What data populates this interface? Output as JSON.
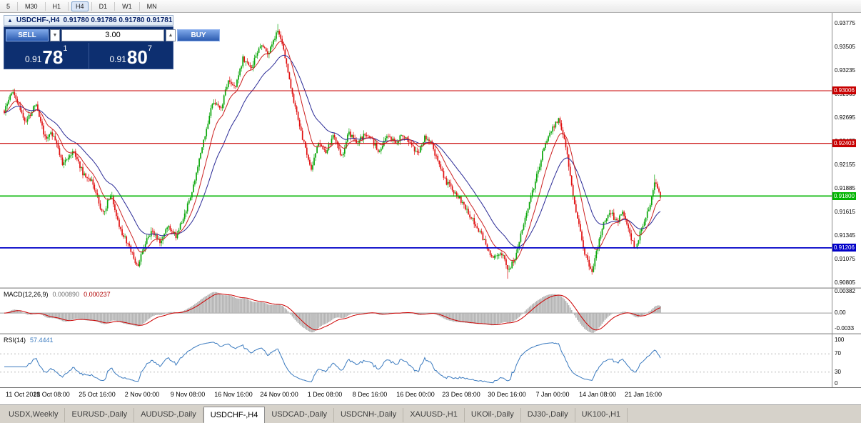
{
  "toolbar": {
    "timeframes": [
      "5",
      "M30",
      "H1",
      "H4",
      "D1",
      "W1",
      "MN"
    ],
    "active": "H4"
  },
  "chart_header": {
    "collapse_icon": "▲",
    "symbol_title": "USDCHF-,H4",
    "ohlc": "0.91780 0.91786 0.91780 0.91781"
  },
  "trade_panel": {
    "sell_label": "SELL",
    "buy_label": "BUY",
    "volume": "3.00",
    "sell_price_prefix": "0.91",
    "sell_price_big": "78",
    "sell_price_sup": "1",
    "buy_price_prefix": "0.91",
    "buy_price_big": "80",
    "buy_price_sup": "7",
    "panel_bg": "#0d2f70",
    "button_color": "#3c77d6"
  },
  "chart_data": {
    "type": "candlestick",
    "symbol": "USDCHF-",
    "timeframe": "H4",
    "title": "USDCHF-,H4 0.91780 0.91786 0.91780 0.91781",
    "ohlc_current": {
      "open": 0.9178,
      "high": 0.91786,
      "low": 0.9178,
      "close": 0.91781
    },
    "bars": 452,
    "y_axis": {
      "price_top": 0.93898,
      "price_bottom": 0.90755,
      "tick_labels": [
        "0.93775",
        "0.93505",
        "0.93235",
        "0.92965",
        "0.92695",
        "0.92425",
        "0.92155",
        "0.91885",
        "0.91615",
        "0.91345",
        "0.91075",
        "0.90805"
      ]
    },
    "x_axis": {
      "labels": [
        "11 Oct 2021",
        "18 Oct 08:00",
        "25 Oct 16:00",
        "2 Nov 00:00",
        "9 Nov 08:00",
        "16 Nov 16:00",
        "24 Nov 00:00",
        "1 Dec 08:00",
        "8 Dec 16:00",
        "16 Dec 00:00",
        "23 Dec 08:00",
        "30 Dec 16:00",
        "7 Jan 00:00",
        "14 Jan 08:00",
        "21 Jan 16:00"
      ]
    },
    "horizontal_lines": [
      {
        "price": 0.93006,
        "label": "0.93006",
        "color": "#c80000",
        "width": 1.1,
        "type": "resistance"
      },
      {
        "price": 0.92403,
        "label": "0.92403",
        "color": "#c80000",
        "width": 1.1,
        "type": "resistance"
      },
      {
        "price": 0.918,
        "label": "0.91800",
        "color": "#00b400",
        "width": 1.6,
        "type": "bid-line"
      },
      {
        "price": 0.91206,
        "label": "0.91206",
        "color": "#0000c8",
        "width": 1.8,
        "type": "support"
      }
    ],
    "price_path": [
      [
        0.0,
        0.9278
      ],
      [
        0.012,
        0.93
      ],
      [
        0.02,
        0.9286
      ],
      [
        0.032,
        0.9262
      ],
      [
        0.048,
        0.9287
      ],
      [
        0.062,
        0.9246
      ],
      [
        0.075,
        0.9252
      ],
      [
        0.09,
        0.9215
      ],
      [
        0.105,
        0.9233
      ],
      [
        0.12,
        0.9206
      ],
      [
        0.135,
        0.9196
      ],
      [
        0.15,
        0.9158
      ],
      [
        0.163,
        0.9184
      ],
      [
        0.176,
        0.9142
      ],
      [
        0.19,
        0.9124
      ],
      [
        0.203,
        0.9099
      ],
      [
        0.214,
        0.9126
      ],
      [
        0.225,
        0.9141
      ],
      [
        0.237,
        0.9128
      ],
      [
        0.25,
        0.9145
      ],
      [
        0.262,
        0.9134
      ],
      [
        0.275,
        0.9158
      ],
      [
        0.29,
        0.9196
      ],
      [
        0.305,
        0.9248
      ],
      [
        0.318,
        0.929
      ],
      [
        0.33,
        0.928
      ],
      [
        0.342,
        0.9315
      ],
      [
        0.352,
        0.9304
      ],
      [
        0.364,
        0.9338
      ],
      [
        0.376,
        0.9325
      ],
      [
        0.39,
        0.9353
      ],
      [
        0.403,
        0.9344
      ],
      [
        0.416,
        0.9369
      ],
      [
        0.426,
        0.9349
      ],
      [
        0.436,
        0.9307
      ],
      [
        0.447,
        0.9269
      ],
      [
        0.458,
        0.9237
      ],
      [
        0.468,
        0.9209
      ],
      [
        0.478,
        0.9239
      ],
      [
        0.49,
        0.9229
      ],
      [
        0.502,
        0.925
      ],
      [
        0.514,
        0.9223
      ],
      [
        0.525,
        0.9253
      ],
      [
        0.537,
        0.9239
      ],
      [
        0.549,
        0.9251
      ],
      [
        0.56,
        0.9244
      ],
      [
        0.572,
        0.9231
      ],
      [
        0.584,
        0.9249
      ],
      [
        0.596,
        0.9241
      ],
      [
        0.608,
        0.9251
      ],
      [
        0.62,
        0.9237
      ],
      [
        0.63,
        0.9227
      ],
      [
        0.641,
        0.9249
      ],
      [
        0.652,
        0.9239
      ],
      [
        0.663,
        0.9214
      ],
      [
        0.674,
        0.9196
      ],
      [
        0.686,
        0.9185
      ],
      [
        0.697,
        0.9174
      ],
      [
        0.709,
        0.9159
      ],
      [
        0.721,
        0.9144
      ],
      [
        0.733,
        0.9127
      ],
      [
        0.745,
        0.9108
      ],
      [
        0.757,
        0.9117
      ],
      [
        0.768,
        0.9094
      ],
      [
        0.778,
        0.9108
      ],
      [
        0.788,
        0.914
      ],
      [
        0.798,
        0.9164
      ],
      [
        0.81,
        0.9199
      ],
      [
        0.822,
        0.9234
      ],
      [
        0.834,
        0.9257
      ],
      [
        0.845,
        0.9267
      ],
      [
        0.855,
        0.9241
      ],
      [
        0.865,
        0.919
      ],
      [
        0.875,
        0.9149
      ],
      [
        0.885,
        0.9114
      ],
      [
        0.895,
        0.9091
      ],
      [
        0.903,
        0.9117
      ],
      [
        0.913,
        0.9149
      ],
      [
        0.923,
        0.9164
      ],
      [
        0.933,
        0.9149
      ],
      [
        0.943,
        0.9163
      ],
      [
        0.953,
        0.9137
      ],
      [
        0.962,
        0.9117
      ],
      [
        0.972,
        0.9146
      ],
      [
        0.982,
        0.9163
      ],
      [
        0.992,
        0.9196
      ],
      [
        1.0,
        0.9178
      ]
    ],
    "colors": {
      "up": "#0aa60a",
      "down": "#e01010",
      "ma_fast": "#cc2020",
      "ma_slow": "#2a2a96"
    },
    "indicators": {
      "macd": {
        "name": "MACD(12,26,9)",
        "value_main": "0.000890",
        "value_signal": "0.000237",
        "fast": 12,
        "slow": 26,
        "signal": 9,
        "tick_labels": [
          {
            "v": 0.00382,
            "t": "0.00382"
          },
          {
            "v": 0,
            "t": "0.00"
          },
          {
            "v": -0.0033,
            "t": "-0.0033"
          }
        ],
        "hist_color": "#b4b4b4",
        "signal_color": "#cc0000",
        "display_max": 0.0038,
        "range_top": 0.0044,
        "range_bottom": -0.0036
      },
      "rsi": {
        "name": "RSI(14)",
        "value": "57.4441",
        "period": 14,
        "tick_labels": [
          {
            "v": 100,
            "t": "100"
          },
          {
            "v": 70,
            "t": "70"
          },
          {
            "v": 30,
            "t": "30"
          },
          {
            "v": 0,
            "t": "0"
          }
        ],
        "levels": [
          70,
          30
        ],
        "color": "#3a7abf"
      }
    }
  },
  "tab_bar": {
    "tabs": [
      "USDX,Weekly",
      "EURUSD-,Daily",
      "AUDUSD-,Daily",
      "USDCHF-,H4",
      "USDCAD-,Daily",
      "USDCNH-,Daily",
      "XAUUSD-,H1",
      "UKOil-,Daily",
      "DJ30-,Daily",
      "UK100-,H1"
    ],
    "active_index": 3
  }
}
